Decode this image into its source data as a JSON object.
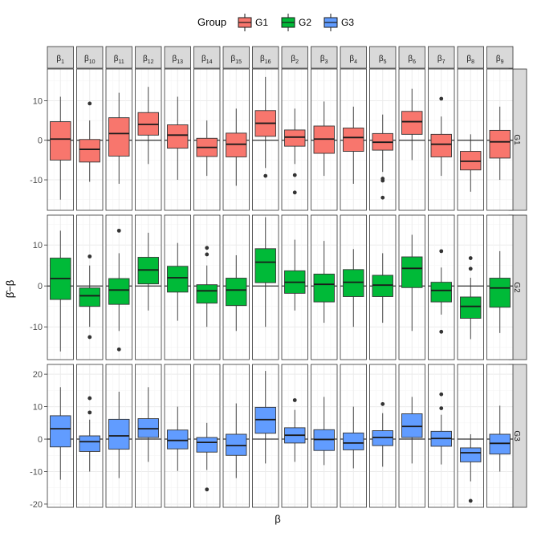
{
  "chart_data": {
    "type": "boxplot",
    "xlabel": "β",
    "ylabel": "β̂−β",
    "legend": {
      "title": "Group",
      "position": "top",
      "items": [
        "G1",
        "G2",
        "G3"
      ]
    },
    "colors": {
      "G1": "#F8766D",
      "G2": "#00BA38",
      "G3": "#619CFF"
    },
    "grid": true,
    "facet_columns": [
      {
        "key": "b1",
        "base": "β",
        "sub": "1"
      },
      {
        "key": "b10",
        "base": "β",
        "sub": "10"
      },
      {
        "key": "b11",
        "base": "β",
        "sub": "11"
      },
      {
        "key": "b12",
        "base": "β",
        "sub": "12"
      },
      {
        "key": "b13",
        "base": "β",
        "sub": "13"
      },
      {
        "key": "b14",
        "base": "β",
        "sub": "14"
      },
      {
        "key": "b15",
        "base": "β",
        "sub": "15"
      },
      {
        "key": "b16",
        "base": "β",
        "sub": "16"
      },
      {
        "key": "b2",
        "base": "β",
        "sub": "2"
      },
      {
        "key": "b3",
        "base": "β",
        "sub": "3"
      },
      {
        "key": "b4",
        "base": "β",
        "sub": "4"
      },
      {
        "key": "b5",
        "base": "β",
        "sub": "5"
      },
      {
        "key": "b6",
        "base": "β",
        "sub": "6"
      },
      {
        "key": "b7",
        "base": "β",
        "sub": "7"
      },
      {
        "key": "b8",
        "base": "β",
        "sub": "8"
      },
      {
        "key": "b9",
        "base": "β",
        "sub": "9"
      }
    ],
    "rows": [
      {
        "group": "G1",
        "ylim": [
          -17.7,
          18
        ],
        "yticks": [
          -10,
          0,
          10
        ],
        "boxes": [
          {
            "min": -15,
            "q1": -5,
            "median": 0.3,
            "q3": 4.7,
            "max": 11,
            "outliers": []
          },
          {
            "min": -10.5,
            "q1": -5.5,
            "median": -2.3,
            "q3": 0.2,
            "max": 5,
            "outliers": [
              9.3
            ]
          },
          {
            "min": -11,
            "q1": -4,
            "median": 1.7,
            "q3": 5.7,
            "max": 12,
            "outliers": []
          },
          {
            "min": -6,
            "q1": 1.3,
            "median": 4,
            "q3": 7,
            "max": 13.5,
            "outliers": []
          },
          {
            "min": -10,
            "q1": -2,
            "median": 1.3,
            "q3": 3.9,
            "max": 11,
            "outliers": []
          },
          {
            "min": -9,
            "q1": -4.1,
            "median": -1.8,
            "q3": 0.5,
            "max": 5,
            "outliers": []
          },
          {
            "min": -11.5,
            "q1": -4.2,
            "median": -1,
            "q3": 1.8,
            "max": 8,
            "outliers": []
          },
          {
            "min": -7,
            "q1": 1,
            "median": 4.3,
            "q3": 7.5,
            "max": 16,
            "outliers": [
              -9
            ]
          },
          {
            "min": -6,
            "q1": -1.5,
            "median": 0.8,
            "q3": 2.6,
            "max": 8,
            "outliers": [
              -8.8,
              -13.2
            ]
          },
          {
            "min": -9,
            "q1": -3.3,
            "median": 0.3,
            "q3": 3.6,
            "max": 9.8,
            "outliers": []
          },
          {
            "min": -11,
            "q1": -2.8,
            "median": 0.7,
            "q3": 3.1,
            "max": 8.5,
            "outliers": []
          },
          {
            "min": -8,
            "q1": -2.5,
            "median": -0.5,
            "q3": 1.7,
            "max": 6.5,
            "outliers": [
              -9.7,
              -10.2,
              -14.5
            ]
          },
          {
            "min": -5,
            "q1": 1.5,
            "median": 4.7,
            "q3": 7.3,
            "max": 13,
            "outliers": []
          },
          {
            "min": -9,
            "q1": -4.2,
            "median": -1,
            "q3": 1.5,
            "max": 6,
            "outliers": [
              10.5
            ]
          },
          {
            "min": -13,
            "q1": -7.5,
            "median": -5.3,
            "q3": -2.8,
            "max": 1.5,
            "outliers": []
          },
          {
            "min": -10,
            "q1": -4.5,
            "median": -0.4,
            "q3": 2.5,
            "max": 8.5,
            "outliers": []
          }
        ]
      },
      {
        "group": "G2",
        "ylim": [
          -18,
          17.3
        ],
        "yticks": [
          -10,
          0,
          10
        ],
        "boxes": [
          {
            "min": -16,
            "q1": -3.3,
            "median": 1.8,
            "q3": 6.8,
            "max": 13.5,
            "outliers": []
          },
          {
            "min": -10,
            "q1": -5,
            "median": -2.4,
            "q3": -0.5,
            "max": 5,
            "outliers": [
              7.2,
              -12.5
            ]
          },
          {
            "min": -11,
            "q1": -4.5,
            "median": -1,
            "q3": 1.8,
            "max": 8,
            "outliers": [
              13.5,
              -15.5
            ]
          },
          {
            "min": -6,
            "q1": 0.5,
            "median": 3.9,
            "q3": 7,
            "max": 13,
            "outliers": []
          },
          {
            "min": -8.5,
            "q1": -1.5,
            "median": 2,
            "q3": 4.8,
            "max": 10.5,
            "outliers": []
          },
          {
            "min": -10,
            "q1": -4.2,
            "median": -1.2,
            "q3": 0.3,
            "max": 5,
            "outliers": [
              9.3,
              7.7
            ]
          },
          {
            "min": -11,
            "q1": -4.8,
            "median": -1,
            "q3": 1.9,
            "max": 7.5,
            "outliers": []
          },
          {
            "min": -10,
            "q1": 0.8,
            "median": 5.8,
            "q3": 9.1,
            "max": 16.8,
            "outliers": []
          },
          {
            "min": -6,
            "q1": -1.8,
            "median": 0.9,
            "q3": 3.7,
            "max": 11.3,
            "outliers": []
          },
          {
            "min": -9,
            "q1": -3.9,
            "median": 0.4,
            "q3": 2.9,
            "max": 11,
            "outliers": []
          },
          {
            "min": -10,
            "q1": -2.6,
            "median": 0.9,
            "q3": 4,
            "max": 9,
            "outliers": []
          },
          {
            "min": -9,
            "q1": -2.6,
            "median": 0.2,
            "q3": 2.6,
            "max": 8,
            "outliers": []
          },
          {
            "min": -11,
            "q1": -0.4,
            "median": 4.3,
            "q3": 7.1,
            "max": 12.5,
            "outliers": []
          },
          {
            "min": -7,
            "q1": -3.9,
            "median": -1.1,
            "q3": 0.9,
            "max": 4.5,
            "outliers": [
              8.5,
              -11.2
            ]
          },
          {
            "min": -13,
            "q1": -7.9,
            "median": -5,
            "q3": -2.7,
            "max": 2,
            "outliers": [
              6.8,
              4.2
            ]
          },
          {
            "min": -11.5,
            "q1": -5.2,
            "median": -0.5,
            "q3": 1.9,
            "max": 8.5,
            "outliers": []
          }
        ]
      },
      {
        "group": "G3",
        "ylim": [
          -21,
          23
        ],
        "yticks": [
          -20,
          -10,
          0,
          10,
          20
        ],
        "boxes": [
          {
            "min": -12.5,
            "q1": -2.4,
            "median": 3.2,
            "q3": 7.2,
            "max": 16,
            "outliers": []
          },
          {
            "min": -10,
            "q1": -3.8,
            "median": -0.8,
            "q3": 1,
            "max": 6,
            "outliers": [
              12.6,
              8.2
            ]
          },
          {
            "min": -12,
            "q1": -3.1,
            "median": 1,
            "q3": 6.1,
            "max": 14.6,
            "outliers": []
          },
          {
            "min": -7,
            "q1": 0.5,
            "median": 3.2,
            "q3": 6.3,
            "max": 16,
            "outliers": []
          },
          {
            "min": -9.8,
            "q1": -3,
            "median": -0.4,
            "q3": 2.8,
            "max": 10,
            "outliers": []
          },
          {
            "min": -9.5,
            "q1": -4,
            "median": -1,
            "q3": 0.5,
            "max": 5,
            "outliers": [
              -15.5
            ]
          },
          {
            "min": -12,
            "q1": -5,
            "median": -2,
            "q3": 1.5,
            "max": 11,
            "outliers": []
          },
          {
            "min": -7.5,
            "q1": 1.8,
            "median": 6,
            "q3": 9.8,
            "max": 21,
            "outliers": []
          },
          {
            "min": -7,
            "q1": -1.2,
            "median": 1.2,
            "q3": 3.5,
            "max": 9,
            "outliers": [
              12
            ]
          },
          {
            "min": -8,
            "q1": -3.5,
            "median": -0.1,
            "q3": 2.9,
            "max": 13,
            "outliers": []
          },
          {
            "min": -9,
            "q1": -3.3,
            "median": -1.2,
            "q3": 1.9,
            "max": 10,
            "outliers": []
          },
          {
            "min": -8.5,
            "q1": -2,
            "median": 0.5,
            "q3": 2.6,
            "max": 8,
            "outliers": [
              10.8
            ]
          },
          {
            "min": -7.5,
            "q1": 0.5,
            "median": 3.9,
            "q3": 7.8,
            "max": 13,
            "outliers": []
          },
          {
            "min": -7.8,
            "q1": -2.2,
            "median": 0.2,
            "q3": 2.4,
            "max": 7.5,
            "outliers": [
              13.8,
              9.5
            ]
          },
          {
            "min": -13,
            "q1": -7,
            "median": -4.2,
            "q3": -2.7,
            "max": 1.5,
            "outliers": [
              -19
            ]
          },
          {
            "min": -10,
            "q1": -4.6,
            "median": -1.3,
            "q3": 1.5,
            "max": 10.3,
            "outliers": []
          }
        ]
      }
    ]
  }
}
